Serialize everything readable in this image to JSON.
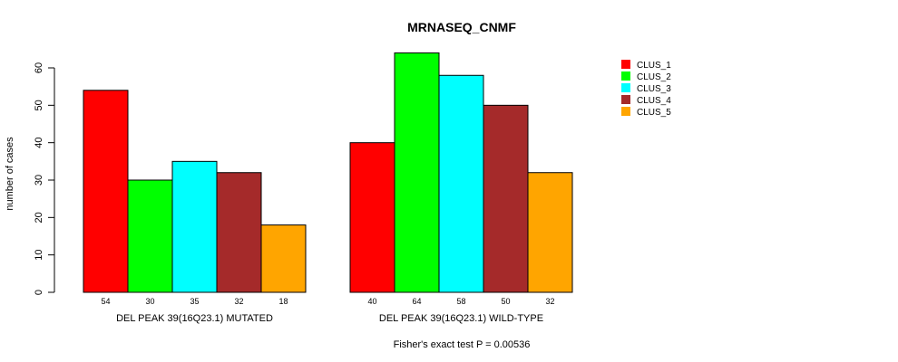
{
  "chart_data": {
    "type": "bar",
    "title": "MRNASEQ_CNMF",
    "ylabel": "number of cases",
    "xlabel": "",
    "ylim": [
      0,
      60
    ],
    "yticks": [
      0,
      10,
      20,
      30,
      40,
      50,
      60
    ],
    "groups": [
      "DEL PEAK 39(16Q23.1) MUTATED",
      "DEL PEAK 39(16Q23.1) WILD-TYPE"
    ],
    "series": [
      {
        "name": "CLUS_1",
        "color": "#FF0000",
        "values": [
          54,
          40
        ]
      },
      {
        "name": "CLUS_2",
        "color": "#00FF00",
        "values": [
          30,
          64
        ]
      },
      {
        "name": "CLUS_3",
        "color": "#00FFFF",
        "values": [
          35,
          58
        ]
      },
      {
        "name": "CLUS_4",
        "color": "#A52A2A",
        "values": [
          32,
          50
        ]
      },
      {
        "name": "CLUS_5",
        "color": "#FFA500",
        "values": [
          18,
          32
        ]
      }
    ],
    "legend_position": "top-right",
    "footnote": "Fisher's exact test P = 0.00536"
  }
}
